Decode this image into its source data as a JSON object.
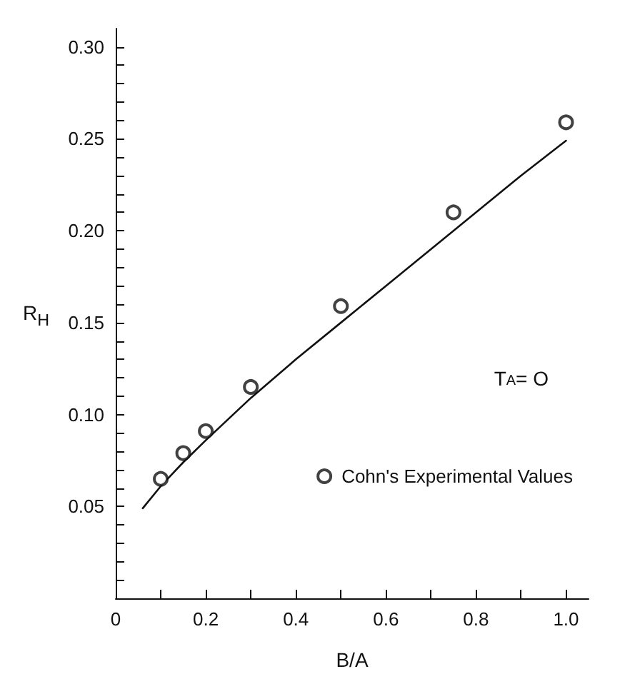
{
  "chart_data": {
    "type": "scatter",
    "xlabel": "B/A",
    "ylabel": "R$_{H}$",
    "annotations": [
      "T$_{A}$= O"
    ],
    "series": [
      {
        "name": "Cohn's Experimental Values",
        "color": "#111111",
        "marker": "circle",
        "x": [
          0.1,
          0.15,
          0.2,
          0.3,
          0.5,
          0.75,
          1.0
        ],
        "values": [
          0.065,
          0.079,
          0.091,
          0.115,
          0.159,
          0.21,
          0.259
        ]
      },
      {
        "type": "line",
        "color": "#111111",
        "marker": "none",
        "line_style": "solid",
        "x": [
          0.06,
          0.1,
          0.15,
          0.2,
          0.3,
          0.4,
          0.5,
          0.6,
          0.75,
          0.9,
          1.0
        ],
        "values": [
          0.049,
          0.061,
          0.074,
          0.086,
          0.109,
          0.13,
          0.15,
          0.17,
          0.2,
          0.23,
          0.249
        ]
      }
    ],
    "xlim": [
      0,
      1.05
    ],
    "ylim": [
      0,
      0.31
    ],
    "xticks": [
      0,
      {
        "value": 0.1,
        "label": null
      },
      0.2,
      {
        "value": 0.3,
        "label": null
      },
      0.4,
      {
        "value": 0.5,
        "label": null
      },
      0.6,
      {
        "value": 0.7,
        "label": null
      },
      0.8,
      {
        "value": 0.9,
        "label": null
      },
      {
        "value": 1,
        "label": "1.0"
      }
    ],
    "yticks": [
      {
        "value": 0.01,
        "label": null
      },
      {
        "value": 0.02,
        "label": null
      },
      {
        "value": 0.03,
        "label": null
      },
      {
        "value": 0.04,
        "label": null
      },
      {
        "value": 0.05,
        "label": "0.05"
      },
      {
        "value": 0.06,
        "label": null
      },
      {
        "value": 0.07,
        "label": null
      },
      {
        "value": 0.08,
        "label": null
      },
      {
        "value": 0.09,
        "label": null
      },
      {
        "value": 0.1,
        "label": "0.10"
      },
      {
        "value": 0.11,
        "label": null
      },
      {
        "value": 0.12,
        "label": null
      },
      {
        "value": 0.13,
        "label": null
      },
      {
        "value": 0.14,
        "label": null
      },
      {
        "value": 0.15,
        "label": "0.15"
      },
      {
        "value": 0.16,
        "label": null
      },
      {
        "value": 0.17,
        "label": null
      },
      {
        "value": 0.18,
        "label": null
      },
      {
        "value": 0.19,
        "label": null
      },
      {
        "value": 0.2,
        "label": "0.20"
      },
      {
        "value": 0.21,
        "label": null
      },
      {
        "value": 0.22,
        "label": null
      },
      {
        "value": 0.23,
        "label": null
      },
      {
        "value": 0.24,
        "label": null
      },
      {
        "value": 0.25,
        "label": "0.25"
      },
      {
        "value": 0.26,
        "label": null
      },
      {
        "value": 0.27,
        "label": null
      },
      {
        "value": 0.28,
        "label": null
      },
      {
        "value": 0.29,
        "label": null
      },
      {
        "value": 0.3,
        "label": "0.30"
      }
    ],
    "grid": false,
    "legend": "bottom right"
  }
}
